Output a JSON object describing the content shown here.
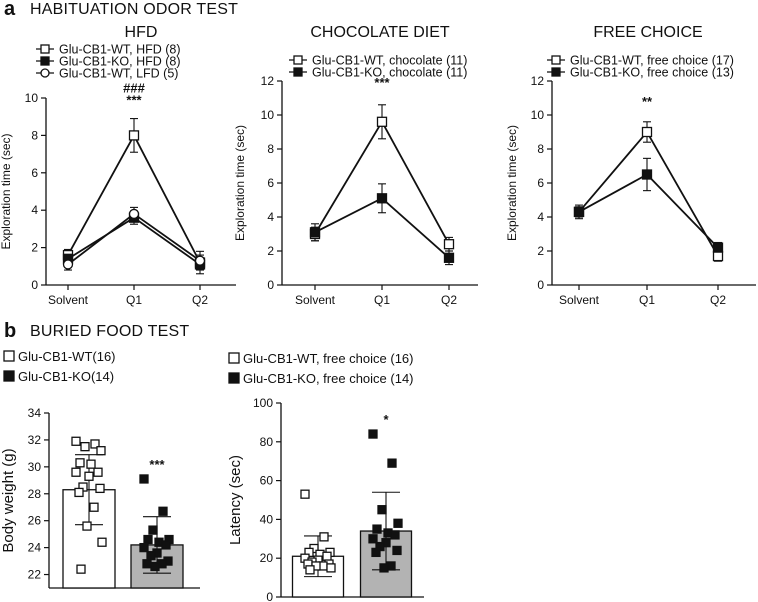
{
  "panel_a": {
    "letter": "a",
    "title": "HABITUATION ODOR TEST"
  },
  "panel_b": {
    "letter": "b",
    "title": "BURIED FOOD TEST"
  },
  "colors": {
    "wt_fill": "#ffffff",
    "ko_fill": "#111111",
    "bar_ko_fill": "#b3b3b3",
    "line": "#111111"
  },
  "chart_data": [
    {
      "id": "hfd",
      "type": "line",
      "title": "HFD",
      "ylabel": "Exploration time (sec)",
      "xlabel": "",
      "ylim": [
        0,
        10
      ],
      "yticks": [
        0,
        2,
        4,
        6,
        8,
        10
      ],
      "categories": [
        "Solvent",
        "Q1",
        "Q2"
      ],
      "series": [
        {
          "name": "Glu-CB1-WT, HFD (8)",
          "marker": "open-square",
          "values": [
            1.6,
            8.0,
            1.2
          ],
          "errors": [
            0.3,
            0.9,
            0.6
          ]
        },
        {
          "name": "Glu-CB1-KO, HFD (8)",
          "marker": "filled-square",
          "values": [
            1.4,
            3.6,
            1.1
          ],
          "errors": [
            0.25,
            0.35,
            0.3
          ]
        },
        {
          "name": "Glu-CB1-WT, LFD (5)",
          "marker": "open-circle",
          "values": [
            1.1,
            3.8,
            1.3
          ],
          "errors": [
            0.3,
            0.35,
            0.3
          ]
        }
      ],
      "annotations": [
        {
          "x": "Q1",
          "text": "###"
        },
        {
          "x": "Q1",
          "text": "***"
        }
      ]
    },
    {
      "id": "chocolate",
      "type": "line",
      "title": "CHOCOLATE DIET",
      "ylabel": "Exploration time (sec)",
      "xlabel": "",
      "ylim": [
        0,
        12
      ],
      "yticks": [
        0,
        2,
        4,
        6,
        8,
        10,
        12
      ],
      "categories": [
        "Solvent",
        "Q1",
        "Q2"
      ],
      "series": [
        {
          "name": "Glu-CB1-WT, chocolate (11)",
          "marker": "open-square",
          "values": [
            3.0,
            9.6,
            2.4
          ],
          "errors": [
            0.4,
            1.0,
            0.4
          ]
        },
        {
          "name": "Glu-CB1-KO, chocolate (11)",
          "marker": "filled-square",
          "values": [
            3.1,
            5.1,
            1.6
          ],
          "errors": [
            0.5,
            0.85,
            0.4
          ]
        }
      ],
      "annotations": [
        {
          "x": "Q1",
          "text": "***"
        }
      ]
    },
    {
      "id": "free_choice",
      "type": "line",
      "title": "FREE CHOICE",
      "ylabel": "Exploration time (sec)",
      "xlabel": "",
      "ylim": [
        0,
        12
      ],
      "yticks": [
        0,
        2,
        4,
        6,
        8,
        10,
        12
      ],
      "categories": [
        "Solvent",
        "Q1",
        "Q2"
      ],
      "series": [
        {
          "name": "Glu-CB1-WT, free choice (17)",
          "marker": "open-square",
          "values": [
            4.3,
            9.0,
            1.7
          ],
          "errors": [
            0.4,
            0.6,
            0.3
          ]
        },
        {
          "name": "Glu-CB1-KO, free choice (13)",
          "marker": "filled-square",
          "values": [
            4.3,
            6.5,
            2.2
          ],
          "errors": [
            0.3,
            0.95,
            0.3
          ]
        }
      ],
      "annotations": [
        {
          "x": "Q1",
          "text": "**"
        }
      ]
    },
    {
      "id": "body_weight",
      "type": "bar",
      "title": "",
      "ylabel": "Body weight (g)",
      "xlabel": "",
      "ylim": [
        21,
        34
      ],
      "yticks": [
        22,
        24,
        26,
        28,
        30,
        32,
        34
      ],
      "series": [
        {
          "name": "Glu-CB1-WT(16)",
          "mean": 28.3,
          "sd": 2.6,
          "points": [
            31.9,
            31.7,
            31.5,
            31.2,
            30.3,
            30.2,
            29.6,
            29.6,
            29.3,
            28.5,
            28.4,
            28.1,
            27.0,
            25.6,
            24.4,
            22.4
          ]
        },
        {
          "name": "Glu-CB1-KO(14)",
          "mean": 24.2,
          "sd": 2.1,
          "points": [
            29.1,
            26.7,
            25.3,
            24.6,
            24.6,
            24.4,
            24.2,
            24.0,
            23.6,
            23.4,
            23.0,
            22.8,
            22.8,
            22.6
          ]
        }
      ],
      "annotations": [
        {
          "x": "Glu-CB1-KO(14)",
          "text": "***"
        }
      ]
    },
    {
      "id": "latency",
      "type": "bar",
      "title": "",
      "ylabel": "Latency (sec)",
      "xlabel": "",
      "ylim": [
        0,
        100
      ],
      "yticks": [
        0,
        20,
        40,
        60,
        80,
        100
      ],
      "series": [
        {
          "name": "Glu-CB1-WT, free choice (16)",
          "mean": 21.0,
          "sd": 10.5,
          "points": [
            53,
            31,
            25,
            23,
            23,
            22,
            21,
            20,
            19,
            18,
            17,
            17,
            16,
            16,
            15,
            14
          ]
        },
        {
          "name": "Glu-CB1-KO, free choice (14)",
          "mean": 34.0,
          "sd": 20.0,
          "points": [
            84,
            69,
            45,
            38,
            35,
            33,
            32,
            30,
            28,
            26,
            24,
            23,
            16,
            15
          ]
        }
      ],
      "annotations": [
        {
          "x": "Glu-CB1-KO, free choice (14)",
          "text": "*"
        }
      ]
    }
  ]
}
